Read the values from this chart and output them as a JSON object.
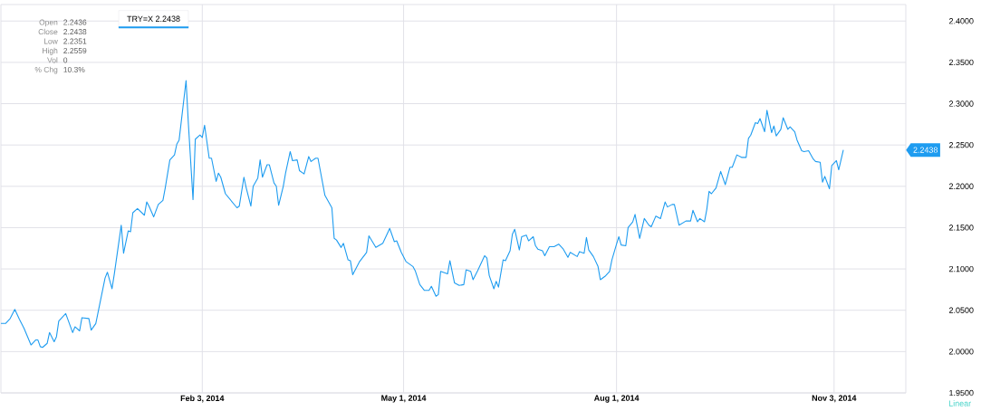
{
  "chart_data": {
    "type": "line",
    "xlim": [
      "2013-11-08",
      "2014-12-04"
    ],
    "ylim": [
      1.95,
      2.42
    ],
    "xticks": [
      {
        "value": "2014-02-03",
        "label": "Feb 3, 2014"
      },
      {
        "value": "2014-05-01",
        "label": "May 1, 2014"
      },
      {
        "value": "2014-08-01",
        "label": "Aug 1, 2014"
      },
      {
        "value": "2014-11-03",
        "label": "Nov 3, 2014"
      }
    ],
    "yticks": [
      {
        "value": 1.95,
        "label": "1.9500"
      },
      {
        "value": 2.0,
        "label": "2.0000"
      },
      {
        "value": 2.05,
        "label": "2.0500"
      },
      {
        "value": 2.1,
        "label": "2.1000"
      },
      {
        "value": 2.15,
        "label": "2.1500"
      },
      {
        "value": 2.2,
        "label": "2.2000"
      },
      {
        "value": 2.25,
        "label": "2.2500"
      },
      {
        "value": 2.3,
        "label": "2.3000"
      },
      {
        "value": 2.35,
        "label": "2.3500"
      },
      {
        "value": 2.4,
        "label": "2.4000"
      }
    ],
    "grid": true,
    "legend": "top left",
    "marker": "none",
    "line_style": "solid",
    "annotations": [
      "Open",
      "2.2436",
      "Close",
      "2.2438",
      "Low",
      "2.2351",
      "High",
      "2.2559",
      "Vol",
      "0",
      "% Chg",
      "10.3%",
      "Linear",
      "2.2438"
    ],
    "series": [
      {
        "name": "TRY=X 2.2438",
        "color": "#1e9cf0",
        "x": [
          "2013-11-08",
          "2013-11-10",
          "2013-11-12",
          "2013-11-14",
          "2013-11-16",
          "2013-11-18",
          "2013-11-21",
          "2013-11-23",
          "2013-11-24",
          "2013-11-25",
          "2013-11-26",
          "2013-11-28",
          "2013-11-29",
          "2013-12-01",
          "2013-12-02",
          "2013-12-03",
          "2013-12-06",
          "2013-12-09",
          "2013-12-10",
          "2013-12-12",
          "2013-12-13",
          "2013-12-16",
          "2013-12-17",
          "2013-12-19",
          "2013-12-23",
          "2013-12-24",
          "2013-12-26",
          "2013-12-27",
          "2013-12-30",
          "2013-12-31",
          "2014-01-02",
          "2014-01-03",
          "2014-01-04",
          "2014-01-06",
          "2014-01-09",
          "2014-01-10",
          "2014-01-11",
          "2014-01-13",
          "2014-01-15",
          "2014-01-17",
          "2014-01-18",
          "2014-01-20",
          "2014-01-22",
          "2014-01-23",
          "2014-01-24",
          "2014-01-27",
          "2014-01-28",
          "2014-01-30",
          "2014-01-31",
          "2014-02-02",
          "2014-02-03",
          "2014-02-04",
          "2014-02-06",
          "2014-02-07",
          "2014-02-09",
          "2014-02-10",
          "2014-02-11",
          "2014-02-13",
          "2014-02-18",
          "2014-02-19",
          "2014-02-21",
          "2014-02-22",
          "2014-02-24",
          "2014-02-25",
          "2014-02-27",
          "2014-02-28",
          "2014-03-01",
          "2014-03-03",
          "2014-03-04",
          "2014-03-06",
          "2014-03-07",
          "2014-03-08",
          "2014-03-10",
          "2014-03-11",
          "2014-03-13",
          "2014-03-14",
          "2014-03-16",
          "2014-03-17",
          "2014-03-19",
          "2014-03-21",
          "2014-03-22",
          "2014-03-24",
          "2014-03-25",
          "2014-03-28",
          "2014-03-31",
          "2014-04-01",
          "2014-04-02",
          "2014-04-04",
          "2014-04-05",
          "2014-04-07",
          "2014-04-08",
          "2014-04-09",
          "2014-04-12",
          "2014-04-15",
          "2014-04-16",
          "2014-04-19",
          "2014-04-22",
          "2014-04-25",
          "2014-04-27",
          "2014-04-28",
          "2014-04-30",
          "2014-05-02",
          "2014-05-05",
          "2014-05-06",
          "2014-05-08",
          "2014-05-10",
          "2014-05-12",
          "2014-05-13",
          "2014-05-15",
          "2014-05-16",
          "2014-05-17",
          "2014-05-20",
          "2014-05-21",
          "2014-05-23",
          "2014-05-25",
          "2014-05-27",
          "2014-05-28",
          "2014-05-30",
          "2014-05-31",
          "2014-06-02",
          "2014-06-05",
          "2014-06-06",
          "2014-06-07",
          "2014-06-09",
          "2014-06-10",
          "2014-06-11",
          "2014-06-13",
          "2014-06-14",
          "2014-06-16",
          "2014-06-17",
          "2014-06-18",
          "2014-06-20",
          "2014-06-21",
          "2014-06-23",
          "2014-06-24",
          "2014-06-26",
          "2014-06-27",
          "2014-06-28",
          "2014-06-30",
          "2014-07-01",
          "2014-07-03",
          "2014-07-05",
          "2014-07-07",
          "2014-07-09",
          "2014-07-11",
          "2014-07-12",
          "2014-07-15",
          "2014-07-16",
          "2014-07-18",
          "2014-07-19",
          "2014-07-20",
          "2014-07-22",
          "2014-07-24",
          "2014-07-25",
          "2014-07-27",
          "2014-07-29",
          "2014-07-30",
          "2014-08-01",
          "2014-08-02",
          "2014-08-03",
          "2014-08-05",
          "2014-08-06",
          "2014-08-08",
          "2014-08-09",
          "2014-08-11",
          "2014-08-13",
          "2014-08-15",
          "2014-08-16",
          "2014-08-18",
          "2014-08-20",
          "2014-08-22",
          "2014-08-23",
          "2014-08-25",
          "2014-08-26",
          "2014-08-28",
          "2014-08-31",
          "2014-09-02",
          "2014-09-03",
          "2014-09-05",
          "2014-09-06",
          "2014-09-08",
          "2014-09-09",
          "2014-09-10",
          "2014-09-11",
          "2014-09-13",
          "2014-09-15",
          "2014-09-17",
          "2014-09-19",
          "2014-09-20",
          "2014-09-22",
          "2014-09-24",
          "2014-09-26",
          "2014-09-27",
          "2014-09-28",
          "2014-09-30",
          "2014-10-01",
          "2014-10-02",
          "2014-10-04",
          "2014-10-05",
          "2014-10-07",
          "2014-10-08",
          "2014-10-09",
          "2014-10-11",
          "2014-10-12",
          "2014-10-14",
          "2014-10-15",
          "2014-10-17",
          "2014-10-18",
          "2014-10-20",
          "2014-10-21",
          "2014-10-23",
          "2014-10-25",
          "2014-10-26",
          "2014-10-28",
          "2014-10-29",
          "2014-10-30",
          "2014-11-01",
          "2014-11-02",
          "2014-11-04",
          "2014-11-05",
          "2014-11-07"
        ],
        "values": [
          2.034,
          2.034,
          2.04,
          2.051,
          2.039,
          2.028,
          2.008,
          2.014,
          2.014,
          2.006,
          2.005,
          2.01,
          2.023,
          2.012,
          2.018,
          2.037,
          2.046,
          2.023,
          2.03,
          2.025,
          2.041,
          2.04,
          2.026,
          2.034,
          2.089,
          2.096,
          2.076,
          2.094,
          2.153,
          2.119,
          2.146,
          2.145,
          2.168,
          2.173,
          2.165,
          2.181,
          2.176,
          2.163,
          2.178,
          2.183,
          2.198,
          2.232,
          2.238,
          2.251,
          2.256,
          2.328,
          2.276,
          2.184,
          2.257,
          2.262,
          2.259,
          2.274,
          2.234,
          2.234,
          2.206,
          2.216,
          2.211,
          2.191,
          2.174,
          2.176,
          2.211,
          2.198,
          2.176,
          2.2,
          2.21,
          2.232,
          2.211,
          2.226,
          2.226,
          2.204,
          2.2,
          2.177,
          2.2,
          2.216,
          2.242,
          2.231,
          2.232,
          2.219,
          2.215,
          2.236,
          2.23,
          2.234,
          2.234,
          2.189,
          2.174,
          2.137,
          2.135,
          2.126,
          2.131,
          2.111,
          2.11,
          2.093,
          2.109,
          2.12,
          2.14,
          2.126,
          2.131,
          2.149,
          2.133,
          2.134,
          2.12,
          2.109,
          2.103,
          2.098,
          2.081,
          2.074,
          2.074,
          2.079,
          2.067,
          2.069,
          2.097,
          2.094,
          2.11,
          2.083,
          2.08,
          2.081,
          2.099,
          2.097,
          2.087,
          2.098,
          2.116,
          2.113,
          2.092,
          2.076,
          2.085,
          2.078,
          2.111,
          2.11,
          2.122,
          2.142,
          2.148,
          2.123,
          2.139,
          2.141,
          2.134,
          2.139,
          2.128,
          2.124,
          2.122,
          2.116,
          2.127,
          2.127,
          2.13,
          2.124,
          2.114,
          2.12,
          2.115,
          2.121,
          2.119,
          2.138,
          2.123,
          2.115,
          2.103,
          2.087,
          2.091,
          2.097,
          2.111,
          2.13,
          2.139,
          2.129,
          2.128,
          2.15,
          2.157,
          2.166,
          2.137,
          2.161,
          2.153,
          2.151,
          2.164,
          2.161,
          2.181,
          2.175,
          2.178,
          2.178,
          2.153,
          2.158,
          2.158,
          2.171,
          2.157,
          2.161,
          2.157,
          2.172,
          2.194,
          2.191,
          2.198,
          2.218,
          2.202,
          2.223,
          2.223,
          2.238,
          2.235,
          2.235,
          2.258,
          2.262,
          2.277,
          2.276,
          2.282,
          2.266,
          2.292,
          2.265,
          2.273,
          2.261,
          2.269,
          2.283,
          2.269,
          2.272,
          2.266,
          2.256,
          2.243,
          2.242,
          2.243,
          2.233,
          2.23,
          2.229,
          2.205,
          2.212,
          2.197,
          2.225,
          2.231,
          2.22,
          2.244
        ]
      }
    ]
  }
}
